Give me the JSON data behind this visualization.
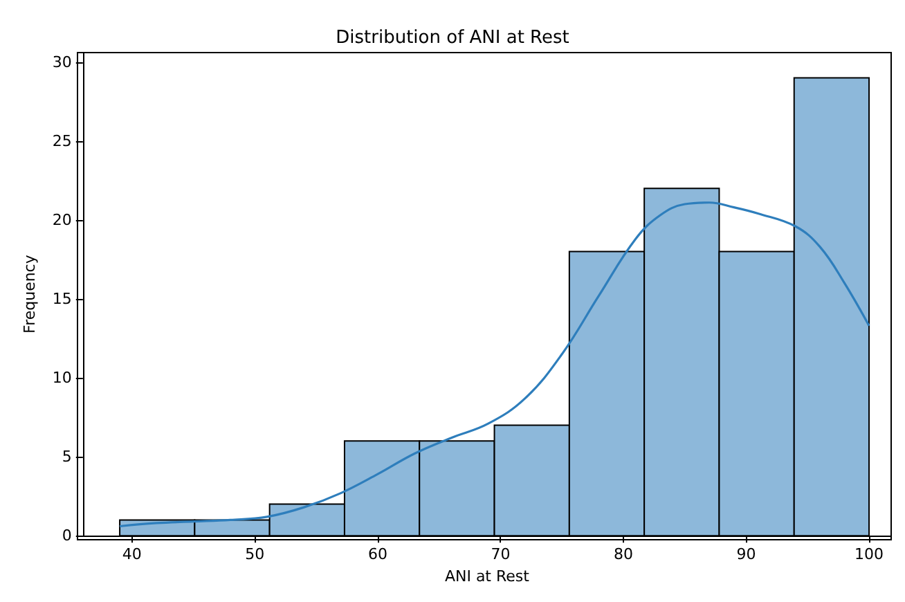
{
  "chart_data": {
    "type": "histogram",
    "title": "Distribution of ANI at Rest",
    "xlabel": "ANI at Rest",
    "ylabel": "Frequency",
    "xlim": [
      36,
      101.8
    ],
    "xticks": [
      40,
      50,
      60,
      70,
      80,
      90,
      100
    ],
    "ylim": [
      0,
      30.6
    ],
    "yticks": [
      0,
      5,
      10,
      15,
      20,
      25,
      30
    ],
    "grid": false,
    "series": [
      {
        "color": "#8db8da",
        "bins": [
          39,
          45.1,
          51.2,
          57.3,
          63.4,
          69.5,
          75.6,
          81.7,
          87.8,
          93.9,
          100
        ],
        "values": [
          1,
          1,
          2,
          6,
          6,
          7,
          18,
          22,
          18,
          29
        ]
      },
      {
        "type": "line",
        "color": "#2e7ebc",
        "x": [
          39,
          42,
          45,
          48,
          51,
          54,
          57,
          60,
          63,
          66,
          69,
          72,
          75,
          78,
          81,
          83,
          85,
          87,
          89,
          91,
          94,
          96,
          98,
          100
        ],
        "values": [
          0.6,
          0.8,
          0.9,
          1.0,
          1.2,
          1.8,
          2.7,
          3.9,
          5.2,
          6.2,
          7.1,
          8.7,
          11.5,
          15.2,
          18.8,
          20.3,
          21.0,
          21.1,
          20.8,
          20.4,
          19.6,
          18.3,
          16.0,
          13.3
        ]
      }
    ]
  }
}
